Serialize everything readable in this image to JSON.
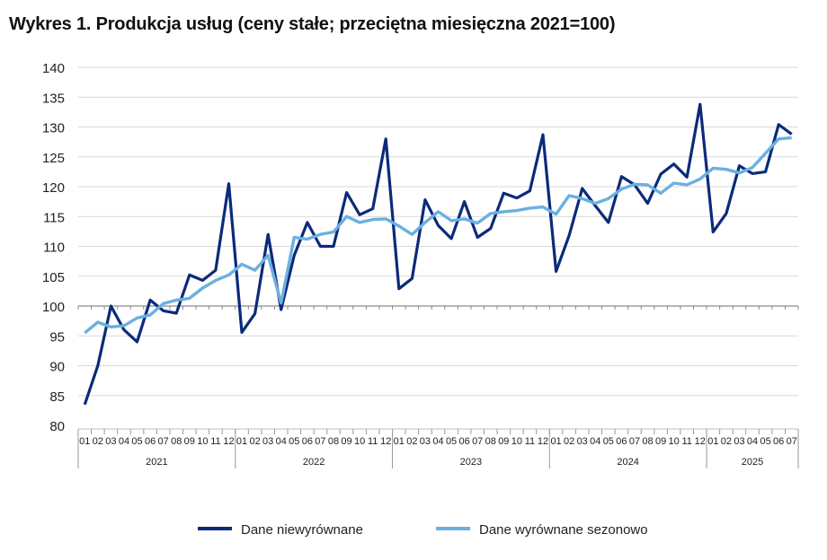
{
  "chart_data": {
    "type": "line",
    "title": "Wykres 1. Produkcja usług (ceny stałe; przeciętna miesięczna 2021=100)",
    "xlabel": "",
    "ylabel": "",
    "ylim": [
      80,
      140
    ],
    "yticks": [
      80,
      85,
      90,
      95,
      100,
      105,
      110,
      115,
      120,
      125,
      130,
      135,
      140
    ],
    "grid": true,
    "legend": "bottom",
    "years": [
      {
        "label": "2021",
        "months": 12
      },
      {
        "label": "2022",
        "months": 12
      },
      {
        "label": "2023",
        "months": 12
      },
      {
        "label": "2024",
        "months": 12
      },
      {
        "label": "2025",
        "months": 7
      }
    ],
    "month_labels": [
      "01",
      "02",
      "03",
      "04",
      "05",
      "06",
      "07",
      "08",
      "09",
      "10",
      "11",
      "12"
    ],
    "series": [
      {
        "name": "Dane niewyrównane",
        "color": "#0b2a7a",
        "values": [
          83.5,
          90,
          100,
          96,
          94,
          101,
          99.2,
          98.8,
          105.2,
          104.3,
          106,
          120.5,
          95.6,
          98.7,
          112,
          99.4,
          108.5,
          114,
          110,
          110,
          119,
          115.3,
          116.3,
          128,
          102.9,
          104.6,
          117.8,
          113.5,
          111.3,
          117.5,
          111.5,
          113,
          118.9,
          118.1,
          119.3,
          128.7,
          105.8,
          111.8,
          119.7,
          116.8,
          114,
          121.7,
          120.3,
          117.2,
          122.1,
          123.8,
          121.6,
          133.8,
          112.4,
          115.5,
          123.5,
          122.2,
          122.5,
          130.4,
          128.8
        ]
      },
      {
        "name": "Dane wyrównane sezonowo",
        "color": "#6ab0e0",
        "values": [
          95.5,
          97.3,
          96.5,
          96.7,
          98,
          98.5,
          100.4,
          101,
          101.3,
          103,
          104.3,
          105.2,
          107,
          106,
          108.5,
          100.5,
          111.5,
          111.2,
          112,
          112.4,
          115,
          114,
          114.5,
          114.6,
          113.4,
          112,
          114,
          115.8,
          114.3,
          114.6,
          113.9,
          115.5,
          115.8,
          116,
          116.4,
          116.6,
          115.4,
          118.5,
          118,
          117.2,
          118,
          119.6,
          120.4,
          120.3,
          118.9,
          120.6,
          120.3,
          121.3,
          123.1,
          122.9,
          122.3,
          123.2,
          125.6,
          128,
          128.2
        ]
      }
    ]
  }
}
